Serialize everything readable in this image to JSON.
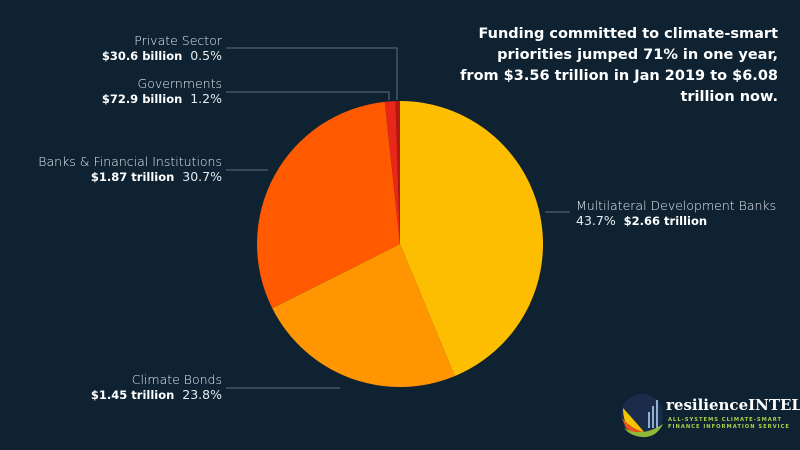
{
  "chart_data": {
    "type": "pie",
    "title": "Funding committed to climate-smart priorities jumped 71% in one year, from $3.56 trillion in Jan 2019 to $6.08 trillion now.",
    "slices": [
      {
        "name": "Multilateral Development Banks",
        "amount": "$2.66 trillion",
        "percent": 43.7,
        "percent_label": "43.7%",
        "color": "#fdbd00"
      },
      {
        "name": "Climate Bonds",
        "amount": "$1.45 trillion",
        "percent": 23.8,
        "percent_label": "23.8%",
        "color": "#ff9500"
      },
      {
        "name": "Banks & Financial Institutions",
        "amount": "$1.87 trillion",
        "percent": 30.7,
        "percent_label": "30.7%",
        "color": "#ff5a00"
      },
      {
        "name": "Governments",
        "amount": "$72.9 billion",
        "percent": 1.2,
        "percent_label": "1.2%",
        "color": "#e8261a"
      },
      {
        "name": "Private Sector",
        "amount": "$30.6 billion",
        "percent": 0.5,
        "percent_label": "0.5%",
        "color": "#b3180e"
      }
    ]
  },
  "headline": "Funding committed to climate-smart priorities jumped 71% in one year, from $3.56 trillion in Jan 2019 to $6.08 trillion now.",
  "logo": {
    "brand": "resilienceINTEL.org",
    "tagline_1": "ALL-SYSTEMS CLIMATE-SMART",
    "tagline_2": "FINANCE INFORMATION SERVICE"
  }
}
